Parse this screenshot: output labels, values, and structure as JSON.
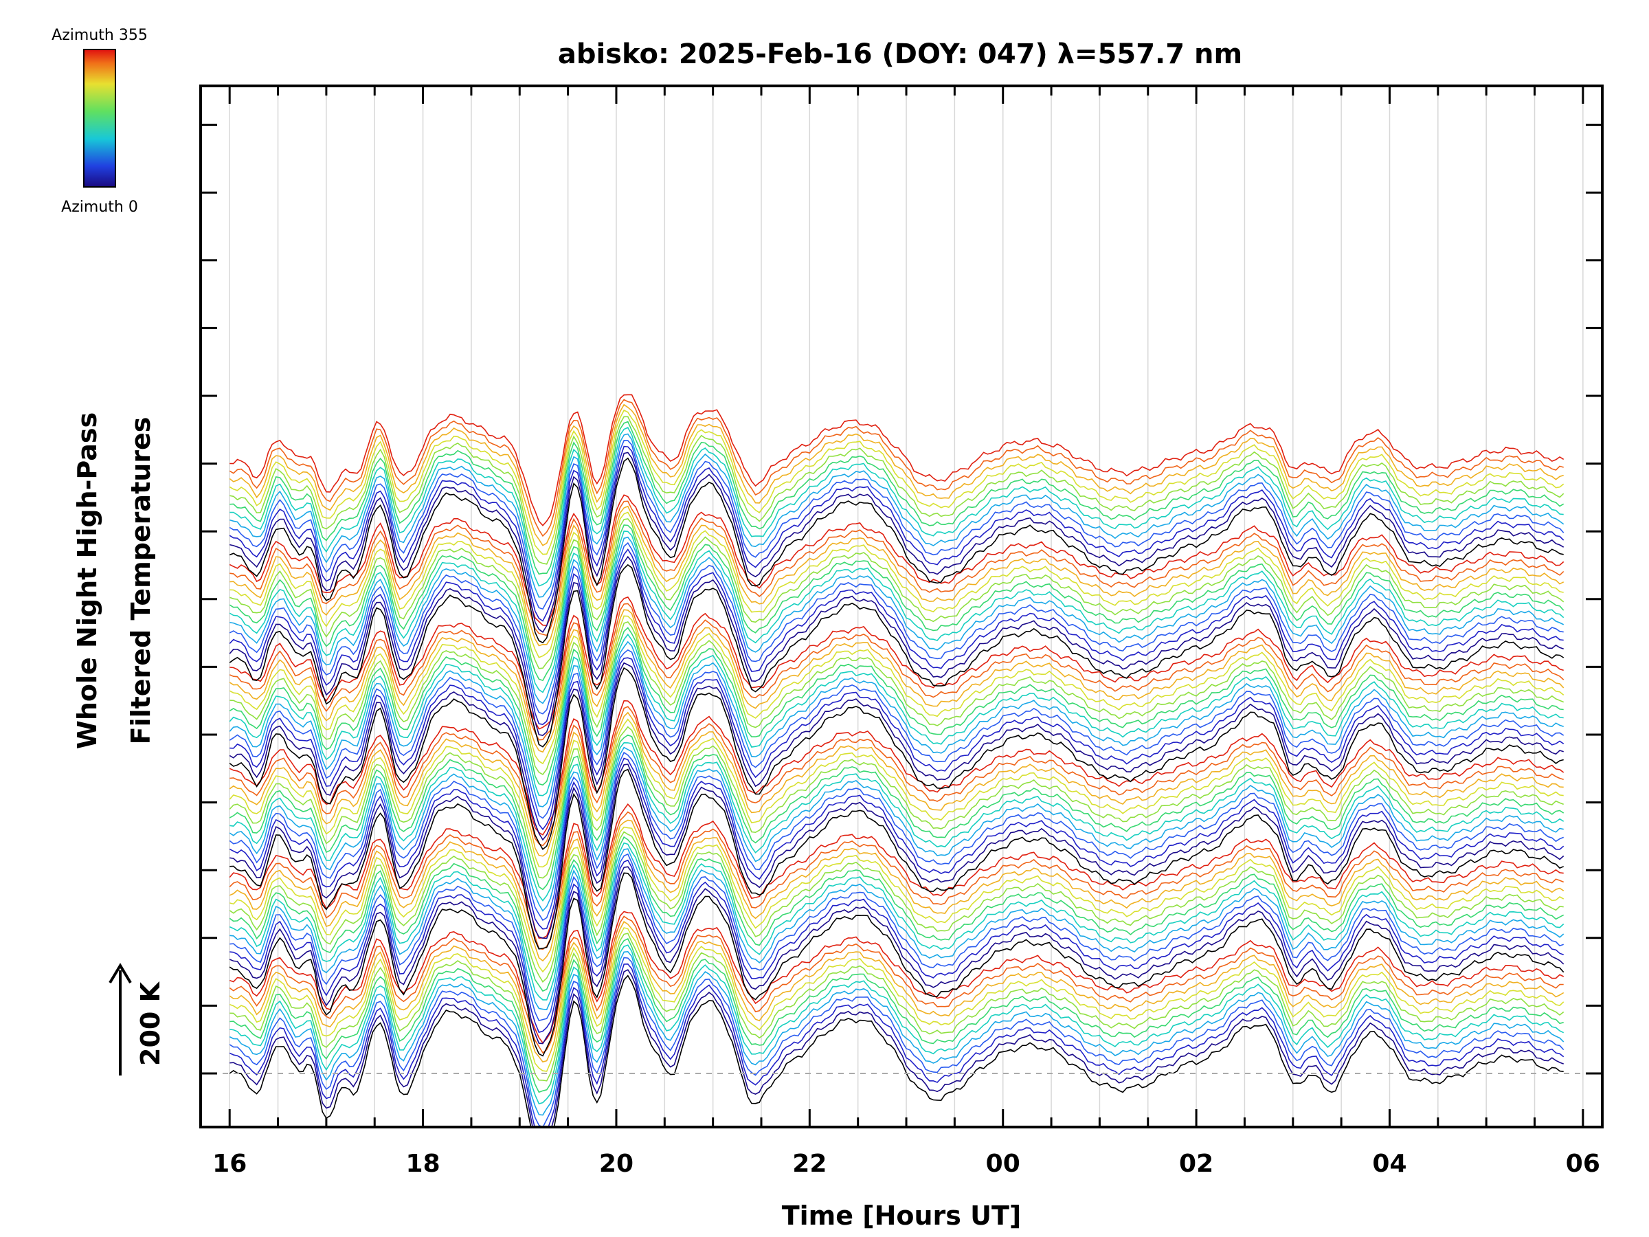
{
  "chart_data": {
    "type": "line",
    "title": "abisko: 2025-Feb-16 (DOY: 047) λ=557.7 nm",
    "xlabel": "Time [Hours UT]",
    "ylabel_line1": "Whole Night High-Pass",
    "ylabel_line2": "Filtered Temperatures",
    "scale_label": "200 K",
    "colorbar": {
      "top_label": "Azimuth 355",
      "bottom_label": "Azimuth 0"
    },
    "x_tick_labels": [
      "16",
      "18",
      "20",
      "22",
      "00",
      "02",
      "04",
      "06"
    ],
    "x_range_hours_after_16UT": [
      -0.3,
      14.2
    ],
    "series_count": 72,
    "azimuth_step_deg": 5,
    "groups": 7,
    "colors": {
      "palette": [
        "#000000",
        "#1a0a8a",
        "#2020c8",
        "#2a5cf0",
        "#1aa8e8",
        "#18d0c0",
        "#38d870",
        "#90e040",
        "#d8e030",
        "#f0b020",
        "#f06418",
        "#e02010"
      ],
      "baseline": "#aaaaaa",
      "grid": "#d8d8d8"
    }
  }
}
